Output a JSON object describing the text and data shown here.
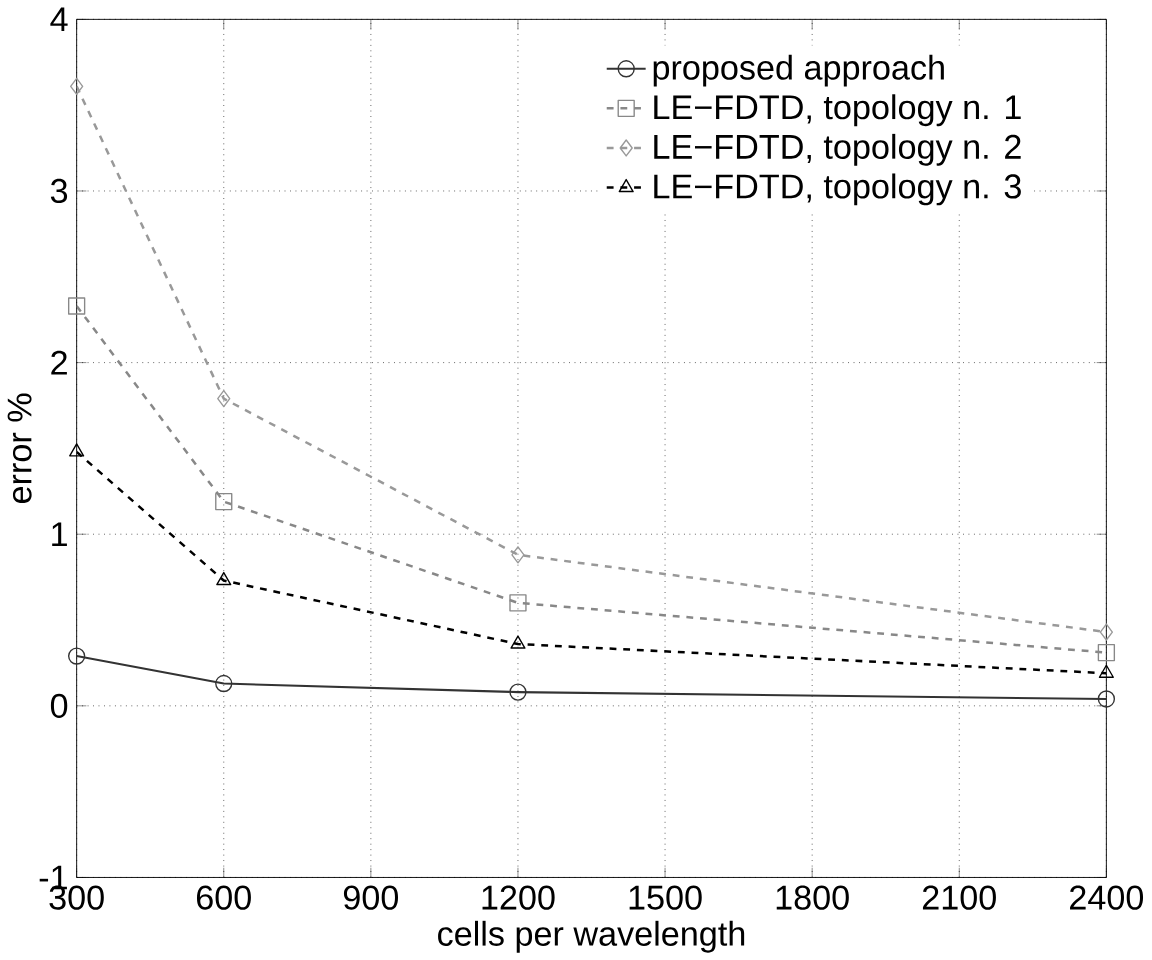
{
  "chart_data": {
    "type": "line",
    "xlabel": "cells per wavelength",
    "ylabel": "error %",
    "x": [
      300,
      600,
      1200,
      2400
    ],
    "series": [
      {
        "name": "proposed approach",
        "color": "#333333",
        "marker": "circle",
        "line_style": "solid",
        "values": [
          0.29,
          0.13,
          0.08,
          0.04
        ]
      },
      {
        "name": "LE−FDTD, topology n. 1",
        "color": "#888888",
        "marker": "square",
        "line_style": "dashed",
        "values": [
          2.33,
          1.19,
          0.6,
          0.31
        ]
      },
      {
        "name": "LE−FDTD, topology n. 2",
        "color": "#999999",
        "marker": "diamond",
        "line_style": "dashed",
        "values": [
          3.61,
          1.79,
          0.88,
          0.43
        ]
      },
      {
        "name": "LE−FDTD, topology n. 3",
        "color": "#000000",
        "marker": "triangle",
        "line_style": "dashed",
        "values": [
          1.48,
          0.73,
          0.36,
          0.19
        ]
      }
    ],
    "xlim": [
      300,
      2400
    ],
    "xticks": [
      300,
      600,
      900,
      1200,
      1500,
      1800,
      2100,
      2400
    ],
    "ylim": [
      -1,
      4
    ],
    "yticks": [
      -1,
      0,
      1,
      2,
      3,
      4
    ],
    "grid": true,
    "legend": "top right"
  }
}
